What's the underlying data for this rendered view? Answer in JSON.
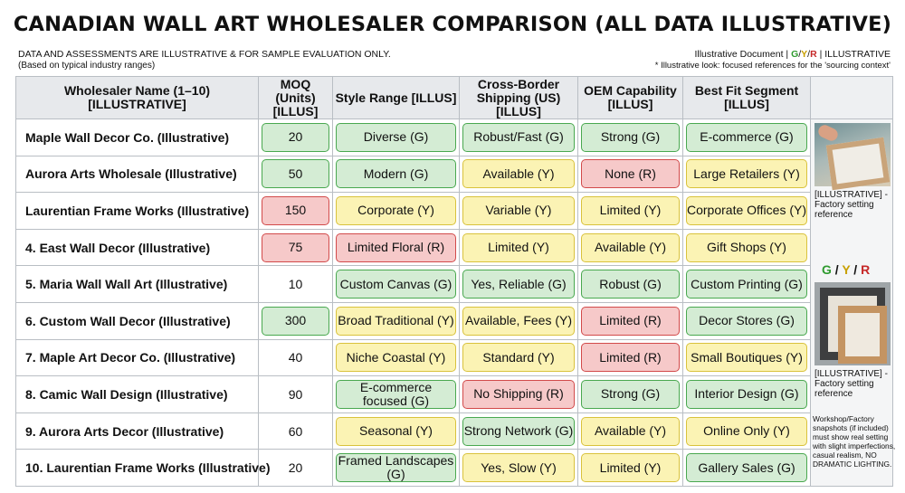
{
  "title": "CANADIAN WALL ART WHOLESALER COMPARISON (ALL DATA ILLUSTRATIVE)",
  "disclaimer_line1": "DATA AND ASSESSMENTS ARE ILLUSTRATIVE & FOR SAMPLE EVALUATION ONLY.",
  "disclaimer_line2": "(Based on typical industry ranges)",
  "meta": {
    "doc_label": "Illustrative Document |",
    "g": "G",
    "sep1": "/",
    "y": "Y",
    "sep2": "/",
    "r": "R",
    "suffix": "| ILLUSTRATIVE",
    "note": "* Illustrative look: focused references for the 'sourcing context'"
  },
  "headers": {
    "name": "Wholesaler Name (1–10) [ILLUSTRATIVE]",
    "moq": "MOQ (Units) [ILLUS]",
    "style": "Style Range [ILLUS]",
    "shipping": "Cross-Border Shipping (US) [ILLUS]",
    "oem": "OEM Capability [ILLUS]",
    "segment": "Best Fit Segment [ILLUS]"
  },
  "rows": [
    {
      "name": "Maple Wall Decor Co. (Illustrative)",
      "moq": "20",
      "moq_rating": "G",
      "style": "Diverse (G)",
      "style_rating": "G",
      "shipping": "Robust/Fast (G)",
      "shipping_rating": "G",
      "oem": "Strong (G)",
      "oem_rating": "G",
      "segment": "E-commerce (G)",
      "segment_rating": "G"
    },
    {
      "name": "Aurora Arts Wholesale (Illustrative)",
      "moq": "50",
      "moq_rating": "G",
      "style": "Modern (G)",
      "style_rating": "G",
      "shipping": "Available (Y)",
      "shipping_rating": "Y",
      "oem": "None (R)",
      "oem_rating": "R",
      "segment": "Large Retailers (Y)",
      "segment_rating": "Y"
    },
    {
      "name": "Laurentian Frame Works (Illustrative)",
      "moq": "150",
      "moq_rating": "R",
      "style": "Corporate (Y)",
      "style_rating": "Y",
      "shipping": "Variable (Y)",
      "shipping_rating": "Y",
      "oem": "Limited (Y)",
      "oem_rating": "Y",
      "segment": "Corporate Offices (Y)",
      "segment_rating": "Y"
    },
    {
      "name": "4. East Wall Decor (Illustrative)",
      "moq": "75",
      "moq_rating": "R",
      "style": "Limited Floral (R)",
      "style_rating": "R",
      "shipping": "Limited (Y)",
      "shipping_rating": "Y",
      "oem": "Available (Y)",
      "oem_rating": "Y",
      "segment": "Gift Shops (Y)",
      "segment_rating": "Y"
    },
    {
      "name": "5. Maria Wall Wall Art (Illustrative)",
      "moq": "10",
      "moq_rating": "",
      "style": "Custom Canvas (G)",
      "style_rating": "G",
      "shipping": "Yes, Reliable (G)",
      "shipping_rating": "G",
      "oem": "Robust (G)",
      "oem_rating": "G",
      "segment": "Custom Printing (G)",
      "segment_rating": "G"
    },
    {
      "name": "6. Custom Wall Decor (Illustrative)",
      "moq": "300",
      "moq_rating": "G",
      "style": "Broad Traditional (Y)",
      "style_rating": "Y",
      "shipping": "Available, Fees (Y)",
      "shipping_rating": "Y",
      "oem": "Limited (R)",
      "oem_rating": "R",
      "segment": "Decor Stores (G)",
      "segment_rating": "G"
    },
    {
      "name": "7. Maple Art Decor Co. (Illustrative)",
      "moq": "40",
      "moq_rating": "",
      "style": "Niche Coastal (Y)",
      "style_rating": "Y",
      "shipping": "Standard (Y)",
      "shipping_rating": "Y",
      "oem": "Limited (R)",
      "oem_rating": "R",
      "segment": "Small Boutiques (Y)",
      "segment_rating": "Y"
    },
    {
      "name": "8. Camic Wall Design (Illustrative)",
      "moq": "90",
      "moq_rating": "",
      "style": "E-commerce focused (G)",
      "style_rating": "G",
      "shipping": "No Shipping (R)",
      "shipping_rating": "R",
      "oem": "Strong (G)",
      "oem_rating": "G",
      "segment": "Interior Design (G)",
      "segment_rating": "G"
    },
    {
      "name": "9. Aurora Arts Decor (Illustrative)",
      "moq": "60",
      "moq_rating": "",
      "style": "Seasonal (Y)",
      "style_rating": "Y",
      "shipping": "Strong Network (G)",
      "shipping_rating": "G",
      "oem": "Available (Y)",
      "oem_rating": "Y",
      "segment": "Online Only (Y)",
      "segment_rating": "Y"
    },
    {
      "name": "10. Laurentian Frame Works (Illustrative)",
      "moq": "20",
      "moq_rating": "",
      "style": "Framed Landscapes (G)",
      "style_rating": "G",
      "shipping": "Yes, Slow (Y)",
      "shipping_rating": "Y",
      "oem": "Limited (Y)",
      "oem_rating": "Y",
      "segment": "Gallery Sales (G)",
      "segment_rating": "G"
    }
  ],
  "side": {
    "caption1": "[ILLUSTRATIVE] - Factory setting reference",
    "gyr_g": "G",
    "gyr_sep1": " / ",
    "gyr_y": "Y",
    "gyr_sep2": " / ",
    "gyr_r": "R",
    "caption2": "[ILLUSTRATIVE] - Factory setting reference",
    "caption3": "Workshop/Factory snapshots (if included) must show real setting with slight imperfections, casual realism, NO DRAMATIC LIGHTING."
  },
  "colors": {
    "green_fill": "#d4ecd4",
    "green_border": "#49a84f",
    "yellow_fill": "#fbf3b4",
    "yellow_border": "#d9c23c",
    "red_fill": "#f6c9c9",
    "red_border": "#d24a4a"
  }
}
